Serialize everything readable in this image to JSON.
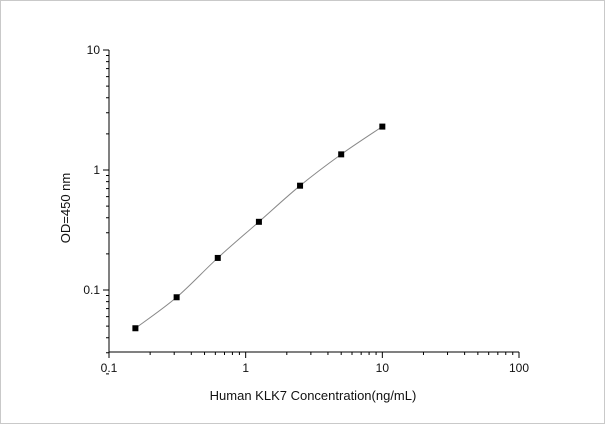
{
  "chart_data": {
    "type": "scatter",
    "title": "",
    "xlabel": "Human KLK7 Concentration(ng/mL)",
    "ylabel": "OD=450 nm",
    "xscale": "log",
    "yscale": "log",
    "xlim": [
      0.1,
      100
    ],
    "ylim": [
      0.02,
      10
    ],
    "grid": false,
    "legend": "none",
    "x_ticks": [
      {
        "value": 0.1,
        "label": "0.1"
      },
      {
        "value": 1,
        "label": "1"
      },
      {
        "value": 10,
        "label": "10"
      },
      {
        "value": 100,
        "label": "100"
      }
    ],
    "y_ticks": [
      {
        "value": 0.1,
        "label": "0.1"
      },
      {
        "value": 1,
        "label": "1"
      },
      {
        "value": 10,
        "label": "10"
      }
    ],
    "series": [
      {
        "x": [
          0.156,
          0.3125,
          0.625,
          1.25,
          2.5,
          5,
          10
        ],
        "y": [
          0.048,
          0.087,
          0.185,
          0.37,
          0.74,
          1.35,
          2.3
        ],
        "marker": "square",
        "line": "smooth",
        "color": "#000000",
        "line_color": "#888888"
      }
    ]
  }
}
